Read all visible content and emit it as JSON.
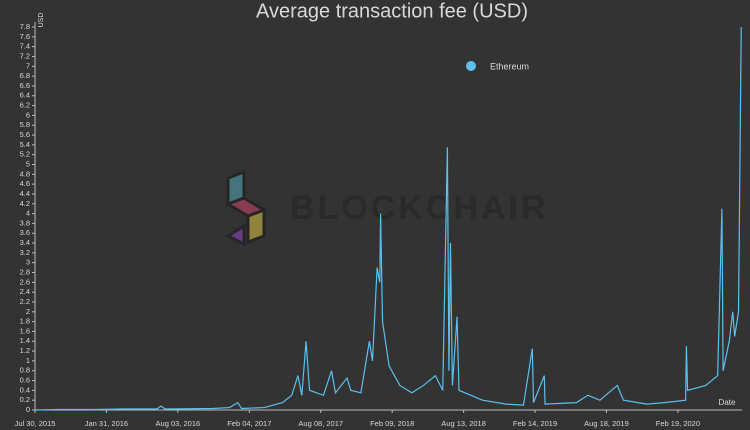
{
  "chart_data": {
    "type": "line",
    "title": "Average transaction fee (USD)",
    "y_label": "USD",
    "x_label": "Date",
    "watermark": "BLOCKCHAIR",
    "x": [
      "2015-07-30",
      "2015-10-01",
      "2016-01-01",
      "2016-03-15",
      "2016-06-10",
      "2016-06-20",
      "2016-07-01",
      "2016-11-01",
      "2016-12-15",
      "2017-01-05",
      "2017-01-15",
      "2017-03-15",
      "2017-05-01",
      "2017-05-25",
      "2017-06-10",
      "2017-06-20",
      "2017-07-01",
      "2017-07-10",
      "2017-08-15",
      "2017-09-05",
      "2017-09-15",
      "2017-10-15",
      "2017-10-25",
      "2017-11-20",
      "2017-12-12",
      "2017-12-20",
      "2018-01-01",
      "2018-01-08",
      "2018-01-10",
      "2018-01-15",
      "2018-02-01",
      "2018-03-01",
      "2018-04-01",
      "2018-05-01",
      "2018-06-01",
      "2018-06-20",
      "2018-07-02",
      "2018-07-06",
      "2018-07-10",
      "2018-07-15",
      "2018-07-27",
      "2018-08-01",
      "2018-09-01",
      "2018-10-01",
      "2018-12-01",
      "2019-01-15",
      "2019-02-07",
      "2019-02-10",
      "2019-03-10",
      "2019-03-12",
      "2019-06-01",
      "2019-07-01",
      "2019-08-01",
      "2019-09-15",
      "2019-10-01",
      "2019-12-01",
      "2020-01-15",
      "2020-03-10",
      "2020-03-12",
      "2020-03-15",
      "2020-05-01",
      "2020-06-01",
      "2020-06-12",
      "2020-06-15",
      "2020-07-01",
      "2020-07-10",
      "2020-07-15",
      "2020-07-25",
      "2020-08-01"
    ],
    "series": [
      {
        "name": "Ethereum",
        "color": "#5bc0f0",
        "values": [
          0.0,
          0.01,
          0.01,
          0.02,
          0.02,
          0.08,
          0.02,
          0.03,
          0.05,
          0.15,
          0.03,
          0.05,
          0.15,
          0.3,
          0.7,
          0.3,
          1.4,
          0.4,
          0.3,
          0.8,
          0.35,
          0.65,
          0.4,
          0.35,
          1.4,
          1.0,
          2.9,
          2.6,
          4.0,
          1.8,
          0.9,
          0.5,
          0.35,
          0.5,
          0.7,
          0.4,
          5.35,
          0.8,
          3.4,
          0.5,
          1.9,
          0.4,
          0.3,
          0.2,
          0.12,
          0.1,
          1.25,
          0.15,
          0.7,
          0.12,
          0.15,
          0.3,
          0.2,
          0.5,
          0.2,
          0.12,
          0.15,
          0.2,
          1.3,
          0.4,
          0.5,
          0.7,
          4.1,
          0.8,
          1.4,
          2.0,
          1.5,
          2.0,
          7.8
        ]
      }
    ],
    "xlim": [
      "2015-07-30",
      "2020-08-03"
    ],
    "xticks": [
      {
        "value": "2015-07-30",
        "label": "Jul 30, 2015"
      },
      {
        "value": "2016-01-31",
        "label": "Jan 31, 2016"
      },
      {
        "value": "2016-08-03",
        "label": "Aug 03, 2016"
      },
      {
        "value": "2017-02-04",
        "label": "Feb 04, 2017"
      },
      {
        "value": "2017-08-08",
        "label": "Aug 08, 2017"
      },
      {
        "value": "2018-02-09",
        "label": "Feb 09, 2018"
      },
      {
        "value": "2018-08-13",
        "label": "Aug 13, 2018"
      },
      {
        "value": "2019-02-14",
        "label": "Feb 14, 2019"
      },
      {
        "value": "2019-08-18",
        "label": "Aug 18, 2019"
      },
      {
        "value": "2020-02-19",
        "label": "Feb 19, 2020"
      }
    ],
    "ylim": [
      0,
      7.8
    ],
    "yticks": [
      0,
      0.2,
      0.4,
      0.6,
      0.8,
      1,
      1.2,
      1.4,
      1.6,
      1.8,
      2,
      2.2,
      2.4,
      2.6,
      2.8,
      3,
      3.2,
      3.4,
      3.6,
      3.8,
      4,
      4.2,
      4.4,
      4.6,
      4.8,
      5,
      5.2,
      5.4,
      5.6,
      5.8,
      6,
      6.2,
      6.4,
      6.6,
      6.8,
      7,
      7.2,
      7.4,
      7.6,
      7.8
    ],
    "grid": false
  }
}
